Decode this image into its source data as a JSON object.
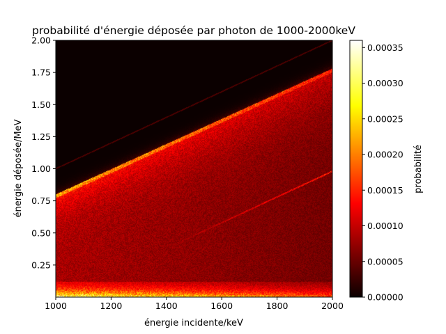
{
  "chart_data": {
    "type": "heatmap",
    "title": "probabilité d'énergie déposée par photon de 1000-2000keV",
    "xlabel": "énergie incidente/keV",
    "ylabel": "énergie déposée/MeV",
    "colorbar_label": "probabilité",
    "colormap": "hot",
    "xlim": [
      1000,
      2000
    ],
    "ylim": [
      0,
      2.0
    ],
    "x_ticks": [
      1000,
      1200,
      1400,
      1600,
      1800,
      2000
    ],
    "y_ticks": [
      0.25,
      0.5,
      0.75,
      1.0,
      1.25,
      1.5,
      1.75,
      2.0
    ],
    "colorbar_range": [
      0,
      0.00036
    ],
    "colorbar_ticks": [
      0.0,
      5e-05,
      0.0001,
      0.00015,
      0.0002,
      0.00025,
      0.0003,
      0.00035
    ],
    "x_tick_labels": [
      "1000",
      "1200",
      "1400",
      "1600",
      "1800",
      "2000"
    ],
    "y_tick_labels": [
      "0.25",
      "0.50",
      "0.75",
      "1.00",
      "1.25",
      "1.50",
      "1.75",
      "2.00"
    ],
    "colorbar_tick_labels": [
      "0.00000",
      "0.00005",
      "0.00010",
      "0.00015",
      "0.00020",
      "0.00025",
      "0.00030",
      "0.00035"
    ],
    "features": {
      "compton_edge_deposited_MeV": {
        "at_x_1000": 0.8,
        "at_x_2000": 1.78
      },
      "double_escape_line_deposited_MeV": {
        "at_x_1400": 0.38,
        "at_x_2000": 0.98
      },
      "low_energy_band_MeV": [
        0,
        0.1
      ]
    }
  }
}
